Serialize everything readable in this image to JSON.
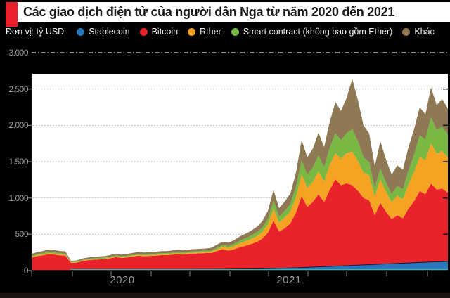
{
  "header": {
    "title": "Các giao dịch điện tử của người dân Nga từ năm 2020 đến 2021"
  },
  "legend": {
    "unit_label": "Đơn vị: tỷ USD"
  },
  "colors": {
    "accent_red": "#e8212d",
    "page_background": "#000000",
    "plot_background": "#ffffff",
    "gridline": "#adadad",
    "top_gridline_dashed": "#d8d8d8",
    "axis_text": "#9b9b9b",
    "cyan_bottom_line": "#35b5ae",
    "stablecoin_edge": "#101d31"
  },
  "chart_data": {
    "type": "area",
    "stacked": true,
    "title": "Các giao dịch điện tử của người dân Nga từ năm 2020 đến 2021",
    "ylabel": "tỷ USD",
    "ylim": [
      0,
      3000
    ],
    "y_ticks": [
      {
        "value": 0,
        "label": "0"
      },
      {
        "value": 500,
        "label": "500"
      },
      {
        "value": 1000,
        "label": "1.000"
      },
      {
        "value": 1500,
        "label": "1.500"
      },
      {
        "value": 2000,
        "label": "2.000"
      },
      {
        "value": 2500,
        "label": "2.500"
      },
      {
        "value": 3000,
        "label": "3.000"
      }
    ],
    "x_labels": [
      "2020",
      "2021"
    ],
    "grid": true,
    "legend_position": "top",
    "series": [
      {
        "name": "Stablecoin",
        "color": "#2776be",
        "values": [
          0,
          0,
          0,
          0,
          0,
          0,
          0,
          5,
          5,
          6,
          6,
          7,
          7,
          8,
          8,
          9,
          9,
          10,
          10,
          11,
          11,
          12,
          12,
          13,
          13,
          14,
          14,
          15,
          15,
          16,
          16,
          17,
          17,
          18,
          18,
          19,
          20,
          21,
          22,
          23,
          24,
          26,
          28,
          30,
          32,
          34,
          36,
          39,
          42,
          45,
          48,
          52,
          55,
          58,
          62,
          65,
          68,
          72,
          75,
          78,
          82,
          85,
          88,
          92,
          95,
          98,
          102,
          105,
          108,
          112,
          115,
          118,
          121,
          124,
          127
        ]
      },
      {
        "name": "Bitcoin",
        "color": "#e8232b",
        "values": [
          179,
          199,
          211,
          226,
          222,
          211,
          207,
          101,
          105,
          124,
          136,
          143,
          147,
          150,
          161,
          176,
          165,
          172,
          183,
          194,
          186,
          190,
          193,
          200,
          200,
          207,
          211,
          207,
          214,
          218,
          222,
          225,
          226,
          253,
          275,
          256,
          272,
          301,
          319,
          343,
          369,
          412,
          491,
          659,
          505,
          550,
          614,
          760,
          984,
          833,
          898,
          998,
          888,
          1056,
          1197,
          1110,
          1133,
          1104,
          1024,
          923,
          886,
          678,
          846,
          719,
          613,
          663,
          618,
          750,
          847,
          983,
          936,
          1081,
          993,
          1006,
          946
        ]
      },
      {
        "name": "Rther",
        "color": "#f6a323",
        "values": [
          12,
          13,
          13,
          15,
          14,
          13,
          13,
          7,
          7,
          8,
          9,
          9,
          9,
          10,
          10,
          11,
          10,
          11,
          12,
          12,
          12,
          12,
          12,
          13,
          13,
          13,
          14,
          13,
          14,
          14,
          14,
          14,
          18,
          27,
          34,
          37,
          44,
          54,
          63,
          69,
          81,
          92,
          119,
          162,
          124,
          147,
          164,
          210,
          299,
          258,
          277,
          314,
          280,
          339,
          361,
          363,
          416,
          462,
          410,
          346,
          344,
          257,
          321,
          273,
          233,
          270,
          258,
          335,
          405,
          470,
          468,
          553,
          497,
          514,
          484
        ]
      },
      {
        "name": "Smart contract (không bao gồm Ether)",
        "color": "#78b843",
        "values": [
          14,
          15,
          16,
          17,
          17,
          16,
          16,
          8,
          8,
          10,
          10,
          11,
          11,
          11,
          12,
          14,
          13,
          13,
          14,
          15,
          14,
          15,
          15,
          15,
          15,
          16,
          16,
          16,
          17,
          17,
          17,
          17,
          18,
          21,
          27,
          26,
          32,
          36,
          39,
          47,
          52,
          59,
          71,
          108,
          83,
          92,
          102,
          144,
          193,
          182,
          196,
          222,
          197,
          239,
          271,
          256,
          277,
          308,
          273,
          211,
          181,
          122,
          152,
          129,
          110,
          135,
          142,
          191,
          239,
          299,
          285,
          360,
          324,
          335,
          315
        ]
      },
      {
        "name": "Khác",
        "color": "#8e7954",
        "values": [
          25,
          28,
          30,
          32,
          32,
          30,
          29,
          14,
          15,
          17,
          19,
          20,
          21,
          21,
          23,
          25,
          23,
          24,
          26,
          27,
          26,
          27,
          27,
          28,
          28,
          29,
          30,
          29,
          30,
          31,
          31,
          32,
          36,
          41,
          46,
          47,
          52,
          58,
          62,
          68,
          74,
          91,
          111,
          151,
          116,
          127,
          144,
          197,
          282,
          242,
          261,
          314,
          280,
          358,
          429,
          406,
          486,
          694,
          568,
          442,
          397,
          298,
          373,
          317,
          269,
          284,
          270,
          319,
          351,
          386,
          346,
          408,
          345,
          381,
          358
        ]
      }
    ]
  }
}
